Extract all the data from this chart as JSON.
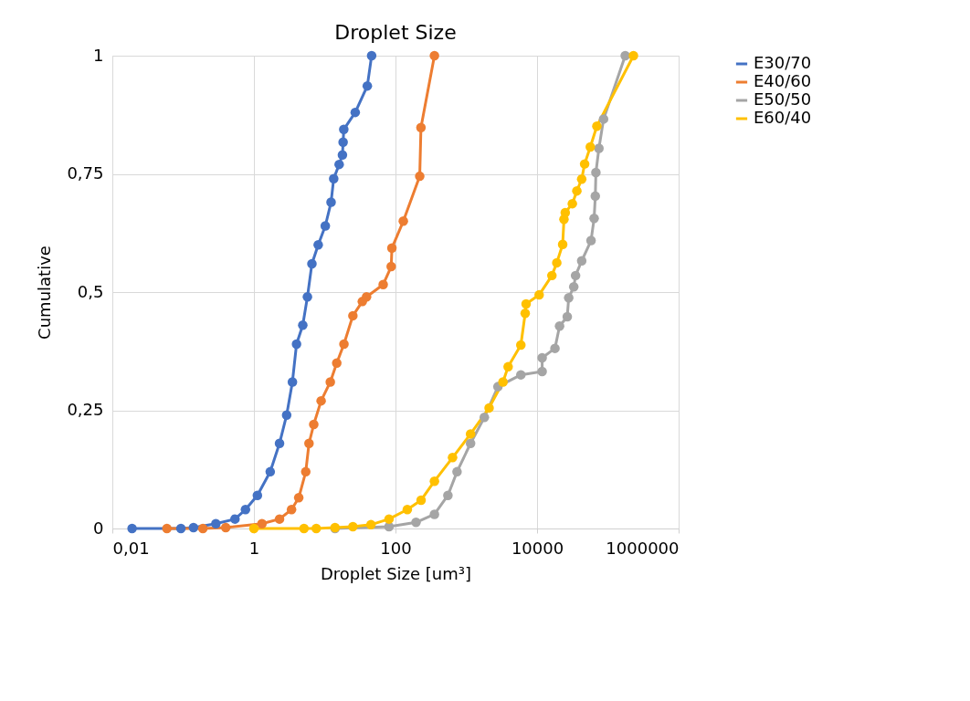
{
  "chart_data": {
    "type": "line",
    "title": "Droplet Size",
    "xlabel": "Droplet Size [um³]",
    "ylabel": "Cumulative",
    "xlim": [
      0.01,
      1000000
    ],
    "ylim": [
      0,
      1
    ],
    "log": "x",
    "xticks": [
      {
        "value": 0.01,
        "label": "0,01"
      },
      1,
      100,
      10000,
      1000000
    ],
    "yticks": [
      0,
      {
        "value": 0.25,
        "label": "0,25"
      },
      {
        "value": 0.5,
        "label": "0,5"
      },
      {
        "value": 0.75,
        "label": "0,75"
      },
      1
    ],
    "grid": true,
    "legend": "right",
    "marker": "circle",
    "line_style": "solid",
    "series": [
      {
        "name": "E30/70",
        "color": "#4472c4",
        "x": [
          0.019,
          0.093,
          0.14,
          0.29,
          0.54,
          0.76,
          1.12,
          1.7,
          2.3,
          2.9,
          3.5,
          4.0,
          4.9,
          5.7,
          6.6,
          8.1,
          10.2,
          12.3,
          13.4,
          16,
          17.8,
          18.2,
          18.6,
          27,
          40,
          46
        ],
        "values": [
          0,
          0,
          0.002,
          0.01,
          0.02,
          0.04,
          0.07,
          0.12,
          0.18,
          0.24,
          0.31,
          0.39,
          0.43,
          0.49,
          0.56,
          0.6,
          0.64,
          0.69,
          0.74,
          0.77,
          0.79,
          0.817,
          0.844,
          0.88,
          0.936,
          1
        ]
      },
      {
        "name": "E40/60",
        "color": "#ed7d31",
        "x": [
          0.059,
          0.19,
          0.4,
          1.3,
          2.3,
          3.4,
          4.3,
          5.4,
          6.0,
          7.0,
          8.9,
          12,
          14.8,
          18.7,
          25,
          34,
          39,
          67,
          87,
          89,
          129,
          220,
          229,
          355
        ],
        "values": [
          0,
          0,
          0.002,
          0.01,
          0.02,
          0.04,
          0.065,
          0.12,
          0.18,
          0.22,
          0.27,
          0.31,
          0.35,
          0.39,
          0.45,
          0.48,
          0.49,
          0.516,
          0.554,
          0.593,
          0.65,
          0.745,
          0.848,
          1
        ]
      },
      {
        "name": "E50/50",
        "color": "#a5a5a5",
        "x": [
          14,
          81,
          195,
          355,
          550,
          740,
          1150,
          1800,
          2800,
          5900,
          11800,
          11800,
          17900,
          20800,
          26700,
          28000,
          33000,
          35000,
          42700,
          57900,
          64000,
          66500,
          67800,
          74800,
          87000,
          176000
        ],
        "values": [
          0,
          0.004,
          0.013,
          0.03,
          0.07,
          0.12,
          0.18,
          0.235,
          0.3,
          0.325,
          0.332,
          0.361,
          0.381,
          0.428,
          0.448,
          0.488,
          0.511,
          0.535,
          0.566,
          0.609,
          0.656,
          0.703,
          0.753,
          0.804,
          0.866,
          1
        ]
      },
      {
        "name": "E60/40",
        "color": "#ffc000",
        "x": [
          1,
          5.1,
          7.6,
          14,
          25,
          45,
          81,
          147,
          230,
          355,
          640,
          1150,
          2100,
          3300,
          3900,
          5900,
          6800,
          7000,
          10700,
          16200,
          19000,
          23000,
          24000,
          25000,
          31500,
          36500,
          42700,
          47000,
          56500,
          70000,
          230000
        ],
        "values": [
          0,
          0,
          0,
          0.002,
          0.004,
          0.008,
          0.02,
          0.04,
          0.06,
          0.1,
          0.15,
          0.2,
          0.255,
          0.31,
          0.342,
          0.388,
          0.455,
          0.475,
          0.494,
          0.535,
          0.562,
          0.601,
          0.654,
          0.668,
          0.687,
          0.714,
          0.739,
          0.771,
          0.807,
          0.851,
          1
        ]
      }
    ]
  }
}
